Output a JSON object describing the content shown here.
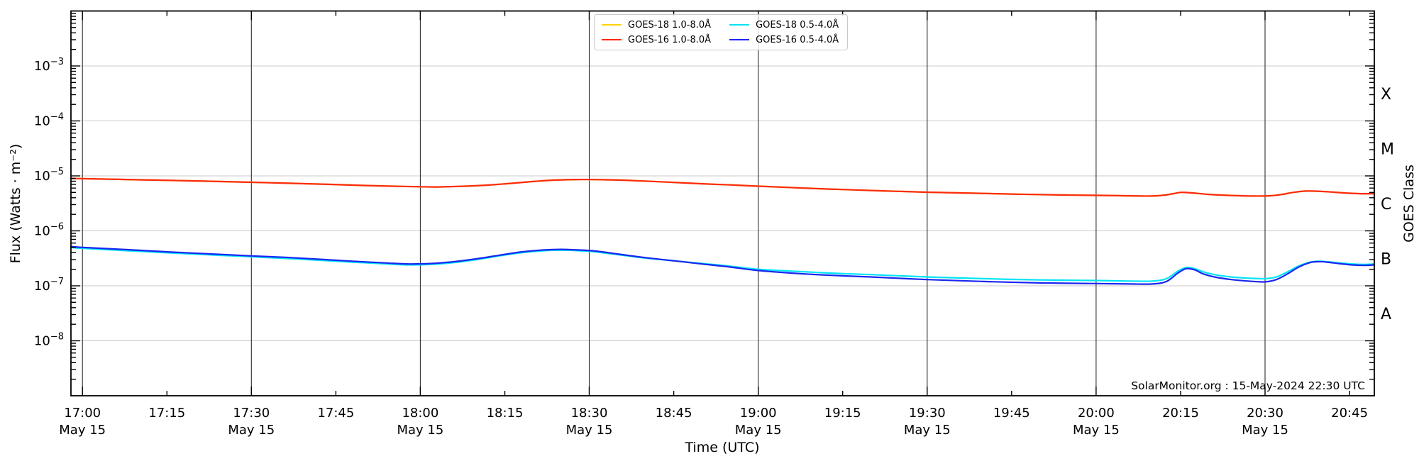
{
  "annotation": "SolarMonitor.org : 15-May-2024 22:30 UTC",
  "chart_data": {
    "type": "line",
    "title": "",
    "annotation": "SolarMonitor.org : 15-May-2024 22:30 UTC",
    "x_axis": {
      "label": "Time (UTC)",
      "date_label": "May 15",
      "domain_minutes_from_1700": [
        -2.04,
        229.4
      ],
      "gridlines_every_min": 30,
      "ticks": [
        {
          "min": 0,
          "time": "17:00",
          "major": true
        },
        {
          "min": 15,
          "time": "17:15",
          "major": false
        },
        {
          "min": 30,
          "time": "17:30",
          "major": true
        },
        {
          "min": 45,
          "time": "17:45",
          "major": false
        },
        {
          "min": 60,
          "time": "18:00",
          "major": true
        },
        {
          "min": 75,
          "time": "18:15",
          "major": false
        },
        {
          "min": 90,
          "time": "18:30",
          "major": true
        },
        {
          "min": 105,
          "time": "18:45",
          "major": false
        },
        {
          "min": 120,
          "time": "19:00",
          "major": true
        },
        {
          "min": 135,
          "time": "19:15",
          "major": false
        },
        {
          "min": 150,
          "time": "19:30",
          "major": true
        },
        {
          "min": 165,
          "time": "19:45",
          "major": false
        },
        {
          "min": 180,
          "time": "20:00",
          "major": true
        },
        {
          "min": 195,
          "time": "20:15",
          "major": false
        },
        {
          "min": 210,
          "time": "20:30",
          "major": true
        },
        {
          "min": 225,
          "time": "20:45",
          "major": false
        }
      ]
    },
    "y_axis": {
      "label": "Flux (Watts · m⁻²)",
      "scale": "log",
      "min_exp": -9,
      "max_exp": -2,
      "labeled_exponents": [
        -3,
        -4,
        -5,
        -6,
        -7,
        -8
      ]
    },
    "right_axis": {
      "label": "GOES Class",
      "classes": [
        {
          "letter": "X",
          "exp": -3.5
        },
        {
          "letter": "M",
          "exp": -4.5
        },
        {
          "letter": "C",
          "exp": -5.5
        },
        {
          "letter": "B",
          "exp": -6.5
        },
        {
          "letter": "A",
          "exp": -7.5
        }
      ]
    },
    "grid": {
      "vertical_color": "#2e2e2e",
      "horizontal_color": "#c8c8c8"
    },
    "legend": {
      "columns": [
        [
          0,
          1
        ],
        [
          2,
          3
        ]
      ],
      "position": "top-center"
    },
    "series": [
      {
        "name": "GOES-18 1.0-8.0Å",
        "color": "#ffd300",
        "points": [
          [
            -2,
            9e-06
          ],
          [
            0,
            8.9e-06
          ],
          [
            10,
            8.5e-06
          ],
          [
            20,
            8.1e-06
          ],
          [
            30,
            7.65e-06
          ],
          [
            40,
            7.2e-06
          ],
          [
            50,
            6.7e-06
          ],
          [
            55,
            6.5e-06
          ],
          [
            60,
            6.35e-06
          ],
          [
            63,
            6.3e-06
          ],
          [
            68,
            6.5e-06
          ],
          [
            72,
            6.8e-06
          ],
          [
            76,
            7.3e-06
          ],
          [
            80,
            7.9e-06
          ],
          [
            84,
            8.4e-06
          ],
          [
            88,
            8.6e-06
          ],
          [
            93,
            8.5e-06
          ],
          [
            98,
            8.2e-06
          ],
          [
            104,
            7.7e-06
          ],
          [
            110,
            7.2e-06
          ],
          [
            115,
            6.85e-06
          ],
          [
            120,
            6.5e-06
          ],
          [
            128,
            6e-06
          ],
          [
            135,
            5.65e-06
          ],
          [
            142,
            5.35e-06
          ],
          [
            150,
            5.05e-06
          ],
          [
            158,
            4.85e-06
          ],
          [
            166,
            4.65e-06
          ],
          [
            174,
            4.5e-06
          ],
          [
            182,
            4.4e-06
          ],
          [
            188,
            4.3e-06
          ],
          [
            191,
            4.35e-06
          ],
          [
            193,
            4.6e-06
          ],
          [
            195,
            5e-06
          ],
          [
            197,
            4.9e-06
          ],
          [
            200,
            4.6e-06
          ],
          [
            204,
            4.4e-06
          ],
          [
            208,
            4.3e-06
          ],
          [
            211,
            4.35e-06
          ],
          [
            213,
            4.6e-06
          ],
          [
            215,
            5e-06
          ],
          [
            217.5,
            5.3e-06
          ],
          [
            221,
            5.15e-06
          ],
          [
            224,
            4.9e-06
          ],
          [
            227,
            4.75e-06
          ],
          [
            229.4,
            4.75e-06
          ]
        ]
      },
      {
        "name": "GOES-16 1.0-8.0Å",
        "color": "#fb2b10",
        "points": [
          [
            -2,
            9e-06
          ],
          [
            0,
            8.9e-06
          ],
          [
            10,
            8.5e-06
          ],
          [
            20,
            8.1e-06
          ],
          [
            30,
            7.65e-06
          ],
          [
            40,
            7.2e-06
          ],
          [
            50,
            6.7e-06
          ],
          [
            55,
            6.5e-06
          ],
          [
            60,
            6.35e-06
          ],
          [
            63,
            6.3e-06
          ],
          [
            68,
            6.5e-06
          ],
          [
            72,
            6.8e-06
          ],
          [
            76,
            7.3e-06
          ],
          [
            80,
            7.9e-06
          ],
          [
            84,
            8.4e-06
          ],
          [
            88,
            8.6e-06
          ],
          [
            93,
            8.5e-06
          ],
          [
            98,
            8.2e-06
          ],
          [
            104,
            7.7e-06
          ],
          [
            110,
            7.2e-06
          ],
          [
            115,
            6.85e-06
          ],
          [
            120,
            6.5e-06
          ],
          [
            128,
            6e-06
          ],
          [
            135,
            5.65e-06
          ],
          [
            142,
            5.35e-06
          ],
          [
            150,
            5.05e-06
          ],
          [
            158,
            4.85e-06
          ],
          [
            166,
            4.65e-06
          ],
          [
            174,
            4.5e-06
          ],
          [
            182,
            4.4e-06
          ],
          [
            188,
            4.3e-06
          ],
          [
            191,
            4.35e-06
          ],
          [
            193,
            4.6e-06
          ],
          [
            195,
            5e-06
          ],
          [
            197,
            4.9e-06
          ],
          [
            200,
            4.6e-06
          ],
          [
            204,
            4.4e-06
          ],
          [
            208,
            4.3e-06
          ],
          [
            211,
            4.35e-06
          ],
          [
            213,
            4.6e-06
          ],
          [
            215,
            5e-06
          ],
          [
            217.5,
            5.3e-06
          ],
          [
            221,
            5.15e-06
          ],
          [
            224,
            4.9e-06
          ],
          [
            227,
            4.75e-06
          ],
          [
            229.4,
            4.75e-06
          ]
        ]
      },
      {
        "name": "GOES-18 0.5-4.0Å",
        "color": "#00e4f5",
        "points": [
          [
            -2,
            5e-07
          ],
          [
            0,
            4.8e-07
          ],
          [
            8,
            4.35e-07
          ],
          [
            16,
            3.95e-07
          ],
          [
            24,
            3.6e-07
          ],
          [
            30,
            3.38e-07
          ],
          [
            36,
            3.15e-07
          ],
          [
            42,
            2.92e-07
          ],
          [
            48,
            2.7e-07
          ],
          [
            54,
            2.5e-07
          ],
          [
            58,
            2.4e-07
          ],
          [
            62,
            2.45e-07
          ],
          [
            66,
            2.65e-07
          ],
          [
            70,
            3e-07
          ],
          [
            74,
            3.5e-07
          ],
          [
            78,
            4e-07
          ],
          [
            82,
            4.35e-07
          ],
          [
            85,
            4.45e-07
          ],
          [
            88,
            4.35e-07
          ],
          [
            91,
            4.15e-07
          ],
          [
            95,
            3.7e-07
          ],
          [
            100,
            3.2e-07
          ],
          [
            105,
            2.85e-07
          ],
          [
            110,
            2.55e-07
          ],
          [
            115,
            2.28e-07
          ],
          [
            120,
            2e-07
          ],
          [
            126,
            1.85e-07
          ],
          [
            133,
            1.7e-07
          ],
          [
            140,
            1.6e-07
          ],
          [
            150,
            1.45e-07
          ],
          [
            160,
            1.35e-07
          ],
          [
            170,
            1.28e-07
          ],
          [
            180,
            1.25e-07
          ],
          [
            186,
            1.22e-07
          ],
          [
            190,
            1.22e-07
          ],
          [
            192.5,
            1.35e-07
          ],
          [
            194.5,
            1.85e-07
          ],
          [
            196,
            2.15e-07
          ],
          [
            197.5,
            2.05e-07
          ],
          [
            199,
            1.8e-07
          ],
          [
            201,
            1.6e-07
          ],
          [
            204,
            1.45e-07
          ],
          [
            207,
            1.38e-07
          ],
          [
            210,
            1.35e-07
          ],
          [
            212,
            1.45e-07
          ],
          [
            214,
            1.8e-07
          ],
          [
            216,
            2.3e-07
          ],
          [
            218,
            2.7e-07
          ],
          [
            219.5,
            2.8e-07
          ],
          [
            221,
            2.75e-07
          ],
          [
            223,
            2.62e-07
          ],
          [
            225.5,
            2.5e-07
          ],
          [
            227.5,
            2.45e-07
          ],
          [
            229.4,
            2.5e-07
          ]
        ]
      },
      {
        "name": "GOES-16 0.5-4.0Å",
        "color": "#1a27f0",
        "points": [
          [
            -2,
            5.2e-07
          ],
          [
            0,
            5e-07
          ],
          [
            8,
            4.55e-07
          ],
          [
            16,
            4.1e-07
          ],
          [
            24,
            3.75e-07
          ],
          [
            30,
            3.5e-07
          ],
          [
            36,
            3.3e-07
          ],
          [
            42,
            3.05e-07
          ],
          [
            48,
            2.8e-07
          ],
          [
            54,
            2.6e-07
          ],
          [
            58,
            2.5e-07
          ],
          [
            62,
            2.55e-07
          ],
          [
            66,
            2.75e-07
          ],
          [
            70,
            3.1e-07
          ],
          [
            74,
            3.6e-07
          ],
          [
            78,
            4.15e-07
          ],
          [
            82,
            4.5e-07
          ],
          [
            85,
            4.6e-07
          ],
          [
            88,
            4.5e-07
          ],
          [
            91,
            4.3e-07
          ],
          [
            95,
            3.8e-07
          ],
          [
            100,
            3.25e-07
          ],
          [
            105,
            2.85e-07
          ],
          [
            110,
            2.5e-07
          ],
          [
            115,
            2.2e-07
          ],
          [
            120,
            1.9e-07
          ],
          [
            126,
            1.7e-07
          ],
          [
            133,
            1.55e-07
          ],
          [
            140,
            1.45e-07
          ],
          [
            150,
            1.3e-07
          ],
          [
            160,
            1.2e-07
          ],
          [
            170,
            1.13e-07
          ],
          [
            180,
            1.1e-07
          ],
          [
            186,
            1.08e-07
          ],
          [
            190,
            1.08e-07
          ],
          [
            192.5,
            1.2e-07
          ],
          [
            194.5,
            1.7e-07
          ],
          [
            196,
            2.05e-07
          ],
          [
            197.5,
            1.95e-07
          ],
          [
            199,
            1.65e-07
          ],
          [
            201,
            1.45e-07
          ],
          [
            204,
            1.3e-07
          ],
          [
            207,
            1.22e-07
          ],
          [
            210,
            1.18e-07
          ],
          [
            212,
            1.3e-07
          ],
          [
            214,
            1.65e-07
          ],
          [
            216,
            2.2e-07
          ],
          [
            218,
            2.65e-07
          ],
          [
            219.5,
            2.75e-07
          ],
          [
            221,
            2.7e-07
          ],
          [
            223,
            2.55e-07
          ],
          [
            225.5,
            2.4e-07
          ],
          [
            227.5,
            2.35e-07
          ],
          [
            229.4,
            2.4e-07
          ]
        ]
      }
    ]
  }
}
